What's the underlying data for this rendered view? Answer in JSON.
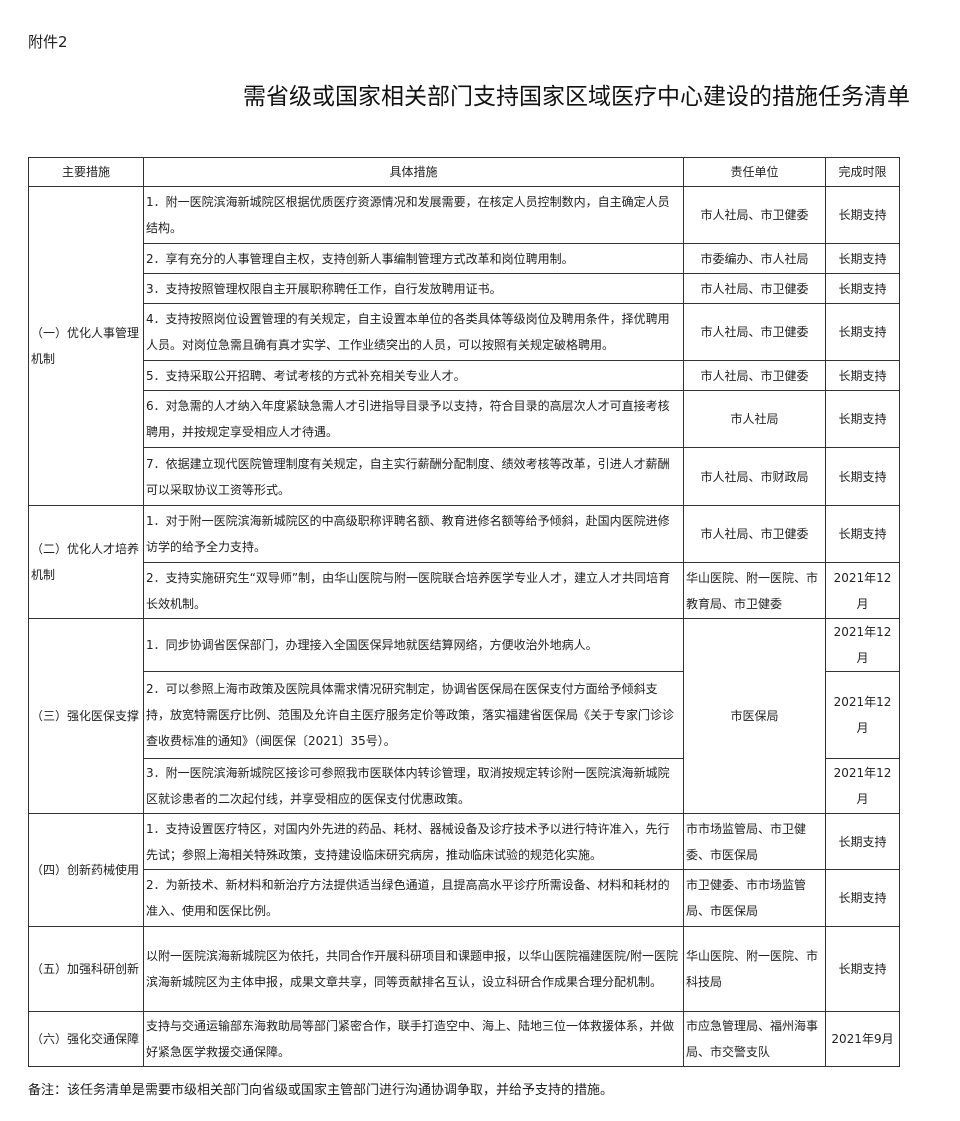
{
  "attachment": "附件2",
  "title": "需省级或国家相关部门支持国家区域医疗中心建设的措施任务清单",
  "headers": [
    "主要措施",
    "具体措施",
    "责任单位",
    "完成时限"
  ],
  "sections": [
    {
      "name": "（一）优化人事管理机制",
      "rows": [
        {
          "h": 57,
          "text": "1．附一医院滨海新城院区根据优质医疗资源情况和发展需要，在核定人员控制数内，自主确定人员结构。",
          "unit": "市人社局、市卫健委",
          "time": "长期支持"
        },
        {
          "h": 30,
          "text": "2．享有充分的人事管理自主权，支持创新人事编制管理方式改革和岗位聘用制。",
          "unit": "市委编办、市人社局",
          "time": "长期支持"
        },
        {
          "h": 30,
          "text": "3．支持按照管理权限自主开展职称聘任工作，自行发放聘用证书。",
          "unit": "市人社局、市卫健委",
          "time": "长期支持"
        },
        {
          "h": 57,
          "text": "4．支持按照岗位设置管理的有关规定，自主设置本单位的各类具体等级岗位及聘用条件，择优聘用人员。对岗位急需且确有真才实学、工作业绩突出的人员，可以按照有关规定破格聘用。",
          "unit": "市人社局、市卫健委",
          "time": "长期支持"
        },
        {
          "h": 30,
          "text": "5．支持采取公开招聘、考试考核的方式补充相关专业人才。",
          "unit": "市人社局、市卫健委",
          "time": "长期支持"
        },
        {
          "h": 57,
          "text": "6．对急需的人才纳入年度紧缺急需人才引进指导目录予以支持，符合目录的高层次人才可直接考核聘用，并按规定享受相应人才待遇。",
          "unit": "市人社局",
          "time": "长期支持"
        },
        {
          "h": 58,
          "text": "7．依据建立现代医院管理制度有关规定，自主实行薪酬分配制度、绩效考核等改革，引进人才薪酬可以采取协议工资等形式。",
          "unit": "市人社局、市财政局",
          "time": "长期支持"
        }
      ]
    },
    {
      "name": "（二）优化人才培养机制",
      "rows": [
        {
          "h": 57,
          "text": "1．对于附一医院滨海新城院区的中高级职称评聘名额、教育进修名额等给予倾斜，赴国内医院进修访学的给予全力支持。",
          "unit": "市人社局、市卫健委",
          "time": "长期支持"
        },
        {
          "h": 56,
          "text": "2．支持实施研究生“双导师”制，由华山医院与附一医院联合培养医学专业人才，建立人才共同培育长效机制。",
          "unit": "华山医院、附一医院、市教育局、市卫健委",
          "time": "2021年12月"
        }
      ]
    },
    {
      "name": "（三）强化医保支撑",
      "shared_unit": "市医保局",
      "rows": [
        {
          "h": 30,
          "text": "1．同步协调省医保部门，办理接入全国医保异地就医结算网络，方便收治外地病人。",
          "time": "2021年12月"
        },
        {
          "h": 87,
          "text": "2．可以参照上海市政策及医院具体需求情况研究制定，协调省医保局在医保支付方面给予倾斜支持，放宽特需医疗比例、范围及允许自主医疗服务定价等政策，落实福建省医保局《关于专家门诊诊查收费标准的通知》（闽医保〔2021〕35号）。",
          "time": "2021年12月"
        },
        {
          "h": 55,
          "text": "3．附一医院滨海新城院区接诊可参照我市医联体内转诊管理，取消按规定转诊附一医院滨海新城院区就诊患者的二次起付线，并享受相应的医保支付优惠政策。",
          "time": "2021年12月"
        }
      ]
    },
    {
      "name": "（四）创新药械使用",
      "rows": [
        {
          "h": 56,
          "text": "1．支持设置医疗特区，对国内外先进的药品、耗材、器械设备及诊疗技术予以进行特许准入，先行先试；参照上海相关特殊政策，支持建设临床研究病房，推动临床试验的规范化实施。",
          "unit": "市市场监管局、市卫健委、市医保局",
          "time": "长期支持"
        },
        {
          "h": 57,
          "text": "2．为新技术、新材料和新治疗方法提供适当绿色通道，且提高高水平诊疗所需设备、材料和耗材的准入、使用和医保比例。",
          "unit": "市卫健委、市市场监管局、市医保局",
          "time": "长期支持"
        }
      ]
    },
    {
      "name": "（五）加强科研创新",
      "rows": [
        {
          "h": 85,
          "text": "以附一医院滨海新城院区为依托，共同合作开展科研项目和课题申报，以华山医院福建医院/附一医院滨海新城院区为主体申报，成果文章共享，同等贡献排名互认，设立科研合作成果合理分配机制。",
          "unit": "华山医院、附一医院、市科技局",
          "time": "长期支持"
        }
      ]
    },
    {
      "name": "（六）强化交通保障",
      "rows": [
        {
          "h": 55,
          "text": "支持与交通运输部东海救助局等部门紧密合作，联手打造空中、海上、陆地三位一体救援体系，并做好紧急医学救援交通保障。",
          "unit": "市应急管理局、福州海事局、市交警支队",
          "time": "2021年9月"
        }
      ]
    }
  ],
  "note": "备注：该任务清单是需要市级相关部门向省级或国家主管部门进行沟通协调争取，并给予支持的措施。"
}
